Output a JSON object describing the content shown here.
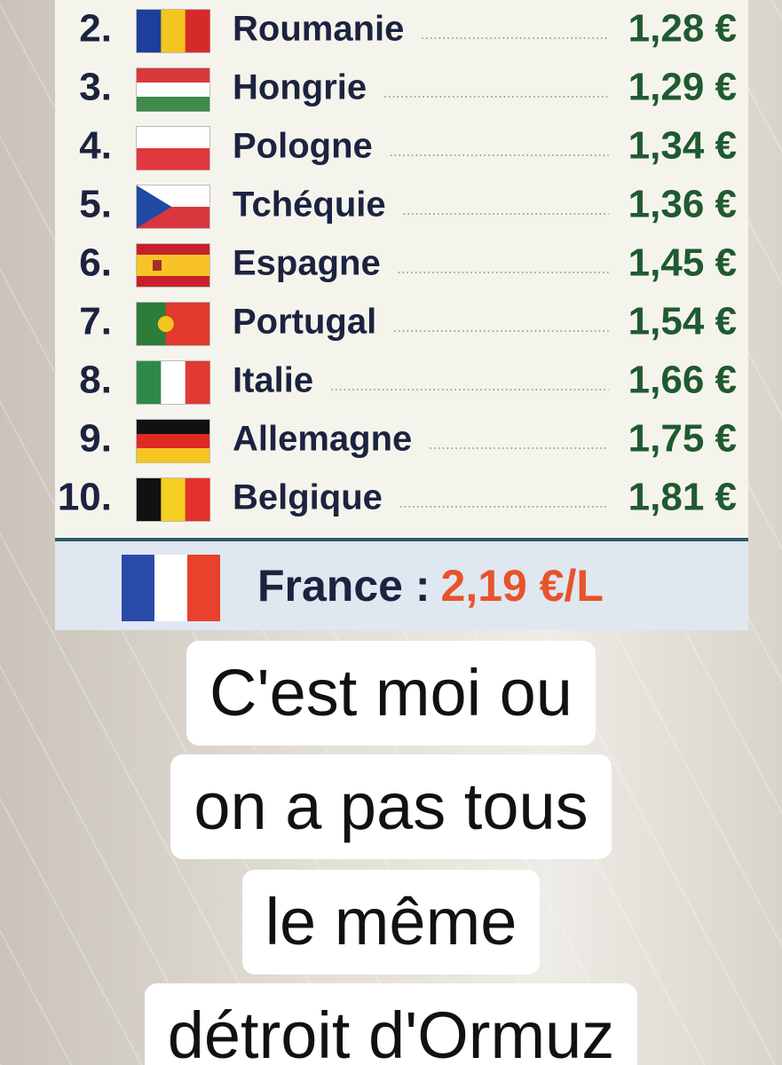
{
  "ranking": {
    "rows": [
      {
        "rank": "2.",
        "country": "Roumanie",
        "price": "1,28 €"
      },
      {
        "rank": "3.",
        "country": "Hongrie",
        "price": "1,29 €"
      },
      {
        "rank": "4.",
        "country": "Pologne",
        "price": "1,34 €"
      },
      {
        "rank": "5.",
        "country": "Tchéquie",
        "price": "1,36 €"
      },
      {
        "rank": "6.",
        "country": "Espagne",
        "price": "1,45 €"
      },
      {
        "rank": "7.",
        "country": "Portugal",
        "price": "1,54 €"
      },
      {
        "rank": "8.",
        "country": "Italie",
        "price": "1,66 €"
      },
      {
        "rank": "9.",
        "country": "Allemagne",
        "price": "1,75 €"
      },
      {
        "rank": "10.",
        "country": "Belgique",
        "price": "1,81 €"
      }
    ],
    "france": {
      "label": "France :",
      "price": "2,19 €/L"
    }
  },
  "caption": {
    "lines": [
      "C'est moi ou",
      "on a pas tous",
      "le même",
      "détroit d'Ormuz"
    ]
  }
}
